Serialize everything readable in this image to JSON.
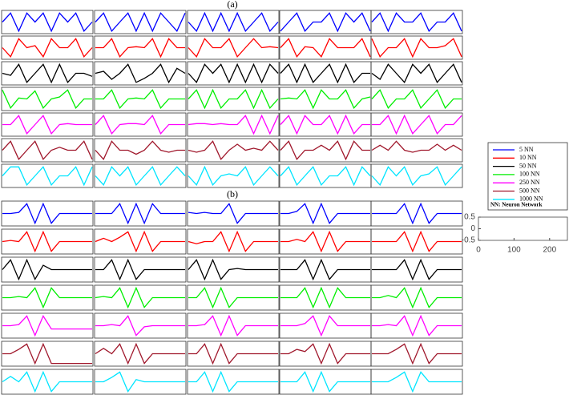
{
  "chart_data": [
    {
      "type": "line-grid",
      "title": "(a)",
      "ylim": [
        -10,
        10
      ],
      "legend_note": "NN: Neuron Network",
      "series": [
        {
          "name": "5 NN",
          "color": "#0000ff",
          "panels": [
            [
              0,
              9,
              -9,
              9,
              0,
              9,
              -9,
              9,
              0,
              9,
              -9,
              0
            ],
            [
              0,
              9,
              -9,
              0,
              9,
              -9,
              9,
              -9,
              9,
              0,
              -9,
              9
            ],
            [
              0,
              -9,
              9,
              -9,
              9,
              -9,
              9,
              -9,
              0,
              9,
              -9,
              0
            ],
            [
              -9,
              0,
              9,
              -9,
              0,
              0,
              9,
              -9,
              9,
              0,
              9,
              -9
            ],
            [
              0,
              9,
              -9,
              9,
              0,
              0,
              9,
              -9,
              0,
              0,
              9,
              -9
            ]
          ]
        },
        {
          "name": "10 NN",
          "color": "#ff0000",
          "panels": [
            [
              0,
              -9,
              9,
              0,
              2,
              -9,
              9,
              0,
              0,
              9,
              -9,
              0
            ],
            [
              0,
              0,
              9,
              -9,
              0,
              1,
              0,
              9,
              -9,
              9,
              0,
              0
            ],
            [
              0,
              -9,
              9,
              0,
              0,
              9,
              -9,
              0,
              9,
              0,
              1,
              0
            ],
            [
              0,
              9,
              -9,
              1,
              0,
              -9,
              9,
              0,
              0,
              0,
              9,
              -9
            ],
            [
              9,
              -9,
              0,
              0,
              9,
              -9,
              9,
              0,
              0,
              2,
              9,
              -9
            ]
          ]
        },
        {
          "name": "50 NN",
          "color": "#000000",
          "panels": [
            [
              0,
              -2,
              9,
              -9,
              0,
              9,
              -9,
              9,
              -9,
              0,
              0,
              -3
            ],
            [
              0,
              2,
              -6,
              0,
              9,
              -9,
              -5,
              0,
              9,
              -9,
              5,
              0
            ],
            [
              0,
              -9,
              9,
              0,
              9,
              -9,
              9,
              -9,
              9,
              -9,
              9,
              0
            ],
            [
              0,
              9,
              -9,
              9,
              -9,
              0,
              9,
              -9,
              9,
              -9,
              0,
              0
            ],
            [
              0,
              -6,
              9,
              0,
              -9,
              9,
              0,
              9,
              -9,
              0,
              9,
              -9
            ]
          ]
        },
        {
          "name": "100 NN",
          "color": "#00ee00",
          "panels": [
            [
              9,
              -9,
              1,
              0,
              8,
              -9,
              0,
              2,
              9,
              -9,
              0,
              0
            ],
            [
              0,
              0,
              9,
              -9,
              0,
              1,
              0,
              9,
              -9,
              0,
              0,
              0
            ],
            [
              0,
              9,
              -9,
              9,
              -9,
              0,
              0,
              9,
              -9,
              9,
              -9,
              0
            ],
            [
              0,
              1,
              0,
              9,
              -9,
              9,
              0,
              0,
              9,
              -9,
              0,
              2
            ],
            [
              0,
              9,
              -9,
              0,
              0,
              9,
              -9,
              0,
              9,
              -9,
              0,
              0
            ]
          ]
        },
        {
          "name": "250 NN",
          "color": "#ff00ff",
          "panels": [
            [
              0,
              0,
              9,
              -9,
              0,
              9,
              -9,
              0,
              1,
              0,
              0,
              0
            ],
            [
              0,
              9,
              -9,
              0,
              1,
              1,
              0,
              9,
              -9,
              0,
              0,
              0
            ],
            [
              0,
              1,
              1,
              0,
              1,
              0,
              0,
              9,
              -9,
              9,
              -9,
              9
            ],
            [
              0,
              9,
              -9,
              9,
              0,
              0,
              9,
              -9,
              9,
              -9,
              0,
              0
            ],
            [
              0,
              0,
              9,
              -9,
              9,
              -9,
              0,
              9,
              -9,
              0,
              0,
              9
            ]
          ]
        },
        {
          "name": "500 NN",
          "color": "#a0182c",
          "panels": [
            [
              0,
              9,
              -9,
              0,
              9,
              -9,
              0,
              3,
              0,
              0,
              9,
              -9
            ],
            [
              0,
              -9,
              9,
              0,
              0,
              -4,
              0,
              9,
              0,
              -2,
              0,
              0
            ],
            [
              0,
              -2,
              0,
              9,
              -9,
              0,
              6,
              0,
              2,
              0,
              9,
              0
            ],
            [
              0,
              9,
              -9,
              0,
              0,
              5,
              0,
              9,
              -9,
              9,
              0,
              0
            ],
            [
              0,
              5,
              0,
              9,
              0,
              -2,
              0,
              0,
              6,
              0,
              5,
              0
            ]
          ]
        },
        {
          "name": "1000 NN",
          "color": "#00e5ff",
          "panels": [
            [
              0,
              9,
              9,
              -9,
              0,
              9,
              -9,
              0,
              0,
              9,
              -9,
              9
            ],
            [
              0,
              -9,
              9,
              0,
              9,
              -9,
              0,
              9,
              -9,
              0,
              9,
              0
            ],
            [
              0,
              -9,
              9,
              -9,
              0,
              2,
              0,
              9,
              -9,
              0,
              9,
              0
            ],
            [
              0,
              9,
              -9,
              0,
              9,
              -9,
              0,
              0,
              9,
              -9,
              9,
              0
            ],
            [
              0,
              -9,
              9,
              0,
              9,
              -9,
              0,
              2,
              9,
              -9,
              0,
              9
            ]
          ]
        }
      ]
    },
    {
      "type": "line-grid",
      "title": "(b)",
      "ylim": [
        -10,
        10
      ],
      "series": [
        {
          "color": "#0000ff",
          "panels": [
            [
              0,
              0,
              1,
              9,
              -9,
              9,
              -9,
              0,
              0,
              0,
              0,
              0
            ],
            [
              0,
              0,
              0,
              9,
              -9,
              9,
              -9,
              9,
              0,
              0,
              0,
              0
            ],
            [
              1,
              0,
              1,
              0,
              0,
              9,
              -9,
              0,
              0,
              0,
              0,
              0
            ],
            [
              0,
              0,
              2,
              9,
              -9,
              9,
              -9,
              0,
              0,
              0,
              0,
              0
            ],
            [
              0,
              0,
              0,
              0,
              9,
              -9,
              9,
              -9,
              0,
              0,
              0,
              0
            ]
          ]
        },
        {
          "color": "#ff0000",
          "panels": [
            [
              0,
              1,
              0,
              9,
              -9,
              9,
              -9,
              0,
              0,
              0,
              0,
              0
            ],
            [
              0,
              3,
              0,
              4,
              9,
              -9,
              9,
              -9,
              0,
              0,
              0,
              0
            ],
            [
              0,
              -2,
              0,
              0,
              9,
              -9,
              9,
              -9,
              0,
              0,
              0,
              0
            ],
            [
              0,
              0,
              2,
              0,
              9,
              -9,
              9,
              -9,
              0,
              0,
              0,
              0
            ],
            [
              0,
              0,
              0,
              0,
              9,
              -9,
              9,
              -9,
              0,
              0,
              0,
              0
            ]
          ]
        },
        {
          "color": "#000000",
          "panels": [
            [
              0,
              9,
              -9,
              9,
              -9,
              4,
              0,
              0,
              0,
              0,
              0,
              0
            ],
            [
              0,
              0,
              9,
              -9,
              9,
              -9,
              0,
              0,
              0,
              0,
              0,
              0
            ],
            [
              0,
              9,
              -9,
              9,
              -9,
              0,
              1,
              0,
              0,
              0,
              0,
              0
            ],
            [
              0,
              0,
              0,
              9,
              -9,
              9,
              -9,
              0,
              0,
              0,
              0,
              0
            ],
            [
              0,
              0,
              0,
              0,
              9,
              -9,
              9,
              -9,
              0,
              0,
              0,
              0
            ]
          ]
        },
        {
          "color": "#00ee00",
          "panels": [
            [
              0,
              0,
              1,
              0,
              9,
              -9,
              9,
              0,
              0,
              0,
              0,
              0
            ],
            [
              0,
              1,
              0,
              9,
              -9,
              9,
              -9,
              0,
              0,
              0,
              0,
              0
            ],
            [
              0,
              0,
              9,
              -9,
              9,
              -9,
              0,
              0,
              0,
              0,
              0,
              0
            ],
            [
              0,
              0,
              0,
              9,
              -9,
              9,
              -9,
              9,
              0,
              0,
              0,
              0
            ],
            [
              0,
              0,
              2,
              0,
              9,
              -9,
              9,
              -9,
              0,
              0,
              0,
              0
            ]
          ]
        },
        {
          "color": "#ff00ff",
          "panels": [
            [
              0,
              0,
              1,
              9,
              -9,
              9,
              -3,
              -3,
              -3,
              -3,
              -3,
              -3
            ],
            [
              0,
              0,
              1,
              0,
              9,
              -9,
              -1,
              0,
              0,
              0,
              0,
              0
            ],
            [
              0,
              0,
              1,
              9,
              -9,
              9,
              -9,
              0,
              0,
              0,
              0,
              0
            ],
            [
              0,
              0,
              0,
              2,
              9,
              -9,
              9,
              0,
              0,
              0,
              0,
              0
            ],
            [
              0,
              0,
              1,
              0,
              9,
              -9,
              9,
              -9,
              0,
              0,
              0,
              0
            ]
          ]
        },
        {
          "color": "#a0182c",
          "panels": [
            [
              0,
              0,
              4,
              9,
              -9,
              9,
              -9,
              -9,
              -9,
              -9,
              -9,
              -9
            ],
            [
              0,
              5,
              0,
              9,
              -9,
              9,
              -9,
              0,
              0,
              0,
              0,
              0
            ],
            [
              0,
              0,
              9,
              -9,
              9,
              -9,
              0,
              0,
              0,
              0,
              0,
              0
            ],
            [
              0,
              0,
              4,
              2,
              9,
              -9,
              9,
              -9,
              0,
              0,
              0,
              0
            ],
            [
              0,
              0,
              0,
              4,
              9,
              -9,
              9,
              -9,
              0,
              0,
              0,
              0
            ]
          ]
        },
        {
          "color": "#00e5ff",
          "panels": [
            [
              0,
              5,
              0,
              9,
              -9,
              9,
              -9,
              0,
              0,
              0,
              0,
              0
            ],
            [
              0,
              0,
              4,
              9,
              -9,
              2,
              0,
              0,
              0,
              0,
              0,
              0
            ],
            [
              0,
              0,
              9,
              -9,
              9,
              -9,
              0,
              0,
              0,
              0,
              0,
              0
            ],
            [
              0,
              0,
              0,
              9,
              -9,
              9,
              -9,
              0,
              0,
              0,
              0,
              0
            ],
            [
              0,
              0,
              0,
              4,
              9,
              -9,
              9,
              0,
              0,
              0,
              0,
              0
            ]
          ]
        }
      ]
    },
    {
      "type": "axes",
      "xlim": [
        0,
        250
      ],
      "ylim": [
        -0.5,
        0.5
      ],
      "xticks": [
        0,
        100,
        200
      ],
      "yticks": [
        0.5,
        0,
        -0.5
      ],
      "series": []
    }
  ]
}
